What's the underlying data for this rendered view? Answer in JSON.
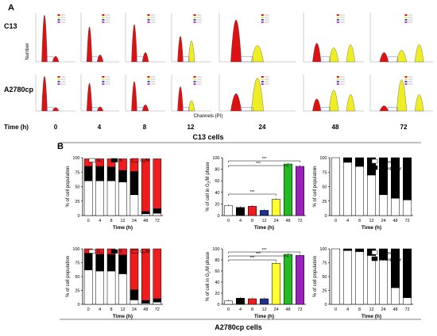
{
  "panel_a": {
    "letter": "A",
    "row_labels": [
      "C13",
      "A2780cp"
    ],
    "ylabel": "Number",
    "xlabel": "Channels (PI)",
    "time_title": "Time (h)",
    "time_points": [
      "0",
      "4",
      "8",
      "12",
      "24",
      "48",
      "72"
    ],
    "bottom_caption": "C13 cells"
  },
  "panel_b": {
    "letter": "B",
    "bottom_caption": "A2780cp cells"
  },
  "colors": {
    "g1": "#ffffff",
    "s": "#000000",
    "g2m": "#ee1c1c",
    "t0": "#ffffff",
    "t4": "#000000",
    "t8": "#ee1c1c",
    "t12": "#1f2e8f",
    "t24": "#ffff33",
    "t48": "#22bb22",
    "t72": "#9922bb",
    "hist_red": "#dd1111",
    "hist_yellow": "#eeee22"
  },
  "chart_data": [
    {
      "id": "c13_cycle",
      "type": "bar",
      "stacked": true,
      "categories": [
        "0",
        "4",
        "8",
        "12",
        "24",
        "48",
        "72"
      ],
      "ylabel": "% of cell population",
      "xlabel": "Time (h)",
      "ylim": [
        0,
        100
      ],
      "yticks": [
        "0",
        "25",
        "50",
        "75",
        "100"
      ],
      "series": [
        {
          "name": "G1",
          "values": [
            60,
            60,
            60,
            58,
            36,
            3,
            4
          ]
        },
        {
          "name": "S",
          "values": [
            25,
            25,
            24,
            20,
            40,
            4,
            8
          ]
        },
        {
          "name": "G2/M",
          "values": [
            13,
            13,
            14,
            20,
            22,
            91,
            86
          ]
        }
      ],
      "legend_items": [
        "G",
        "1",
        "S",
        "G",
        "2",
        "/M"
      ]
    },
    {
      "id": "c13_g2m",
      "type": "bar",
      "categories": [
        "0",
        "4",
        "8",
        "12",
        "24",
        "48",
        "72"
      ],
      "ylabel": "% of cell in G2/M phase",
      "ylabel_parts": [
        "% of cell in G",
        "2",
        "/M phase"
      ],
      "xlabel": "Time (h)",
      "ylim": [
        0,
        100
      ],
      "yticks": [
        "0",
        "20",
        "40",
        "60",
        "80",
        "100"
      ],
      "values": [
        17,
        14,
        16,
        9,
        28,
        89,
        85
      ],
      "significance": [
        "***",
        "***",
        "***"
      ]
    },
    {
      "id": "c13_ploidy",
      "type": "bar",
      "stacked": true,
      "categories": [
        "0",
        "4",
        "8",
        "12",
        "24",
        "48",
        "72"
      ],
      "ylabel": "% of cell populatoin",
      "xlabel": "Time (h)",
      "ylim": [
        0,
        100
      ],
      "yticks": [
        "0",
        "25",
        "50",
        "75",
        "100"
      ],
      "series": [
        {
          "name": "Diploidy",
          "values": [
            100,
            92,
            85,
            70,
            36,
            30,
            27
          ]
        },
        {
          "name": "Aneuploidy",
          "values": [
            0,
            8,
            15,
            30,
            64,
            70,
            73
          ]
        }
      ]
    },
    {
      "id": "a2780_cycle",
      "type": "bar",
      "stacked": true,
      "categories": [
        "0",
        "4",
        "8",
        "12",
        "24",
        "48",
        "72"
      ],
      "ylabel": "% of cell population",
      "xlabel": "Time (h)",
      "ylim": [
        0,
        100
      ],
      "yticks": [
        "0",
        "25",
        "50",
        "75",
        "100"
      ],
      "series": [
        {
          "name": "G1",
          "values": [
            62,
            60,
            60,
            55,
            8,
            2,
            4
          ]
        },
        {
          "name": "S",
          "values": [
            30,
            30,
            30,
            34,
            18,
            5,
            6
          ]
        },
        {
          "name": "G2/M",
          "values": [
            8,
            10,
            10,
            11,
            74,
            93,
            90
          ]
        }
      ],
      "legend_items": [
        "G",
        "1",
        "S",
        "G",
        "2",
        "/M"
      ]
    },
    {
      "id": "a2780_g2m",
      "type": "bar",
      "categories": [
        "0",
        "4",
        "8",
        "12",
        "24",
        "48",
        "72"
      ],
      "ylabel": "% of cell in G2/M phase",
      "ylabel_parts": [
        "% of cell in G",
        "2",
        "/M phase"
      ],
      "xlabel": "Time (h)",
      "ylim": [
        0,
        100
      ],
      "yticks": [
        "0",
        "20",
        "40",
        "60",
        "80",
        "100"
      ],
      "values": [
        6,
        11,
        10,
        10,
        74,
        90,
        88
      ],
      "significance": [
        "***",
        "***",
        "***"
      ]
    },
    {
      "id": "a2780_ploidy",
      "type": "bar",
      "stacked": true,
      "categories": [
        "0",
        "4",
        "8",
        "12",
        "24",
        "48",
        "72"
      ],
      "ylabel": "% of cell populatoin",
      "xlabel": "Time (h)",
      "ylim": [
        0,
        100
      ],
      "yticks": [
        "0",
        "25",
        "50",
        "75",
        "100"
      ],
      "series": [
        {
          "name": "Diploidy",
          "values": [
            100,
            97,
            95,
            88,
            80,
            30,
            12
          ]
        },
        {
          "name": "Aneuploidy",
          "values": [
            0,
            3,
            5,
            12,
            20,
            70,
            88
          ]
        }
      ]
    }
  ]
}
